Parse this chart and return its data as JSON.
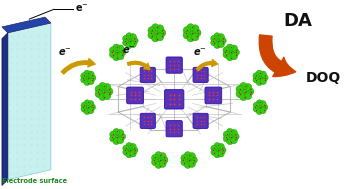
{
  "bg_color": "#ffffff",
  "electrode_face_color": "#c8f0ee",
  "electrode_side_color": "#1a3080",
  "electrode_top_color": "#2244aa",
  "electrode_label": "Electrode surface",
  "electrode_label_color": "#228822",
  "e_minus_color": "#111111",
  "da_label": "DA",
  "doq_label": "DOQ",
  "da_doq_color": "#111111",
  "orange_arrow_color": "#cc4400",
  "electron_arrow_color": "#cc9900",
  "pom_purple": "#5533bb",
  "pom_green": "#33cc11",
  "pom_red": "#cc1111",
  "linker_color": "#999999",
  "linker_color2": "#bbbbbb"
}
